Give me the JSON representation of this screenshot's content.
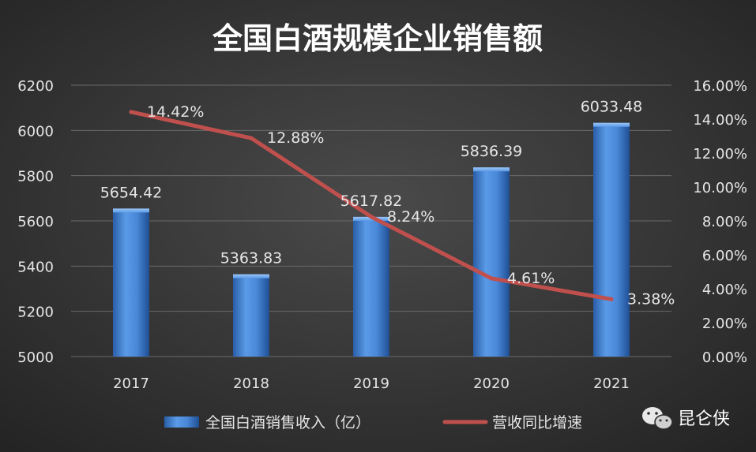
{
  "chart_data": {
    "type": "bar",
    "title": "全国白酒规模企业销售额",
    "categories": [
      "2017",
      "2018",
      "2019",
      "2020",
      "2021"
    ],
    "series": [
      {
        "name": "全国白酒销售收入（亿）",
        "type": "bar",
        "axis": "left",
        "values": [
          5654.42,
          5363.83,
          5617.82,
          5836.39,
          6033.48
        ],
        "labels": [
          "5654.42",
          "5363.83",
          "5617.82",
          "5836.39",
          "6033.48"
        ],
        "color": "#3f7fd4"
      },
      {
        "name": "营收同比增速",
        "type": "line",
        "axis": "right",
        "values": [
          14.42,
          12.88,
          8.24,
          4.61,
          3.38
        ],
        "labels": [
          "14.42%",
          "12.88%",
          "8.24%",
          "4.61%",
          "3.38%"
        ],
        "color": "#c0504d"
      }
    ],
    "y_left": {
      "range": [
        5000,
        6200
      ],
      "ticks": [
        5000,
        5200,
        5400,
        5600,
        5800,
        6000,
        6200
      ],
      "tick_labels": [
        "5000",
        "5200",
        "5400",
        "5600",
        "5800",
        "6000",
        "6200"
      ]
    },
    "y_right": {
      "range": [
        0,
        16
      ],
      "ticks": [
        0,
        2,
        4,
        6,
        8,
        10,
        12,
        14,
        16
      ],
      "tick_labels": [
        "0.00%",
        "2.00%",
        "4.00%",
        "6.00%",
        "8.00%",
        "10.00%",
        "12.00%",
        "14.00%",
        "16.00%"
      ]
    },
    "grid": true,
    "legend_position": "bottom",
    "colors": {
      "background": "#2b2b2b",
      "grid": "#6a6a6a",
      "text": "#e6e6e6"
    }
  },
  "watermark": {
    "text": "昆仑侠",
    "icon": "wechat-icon"
  }
}
